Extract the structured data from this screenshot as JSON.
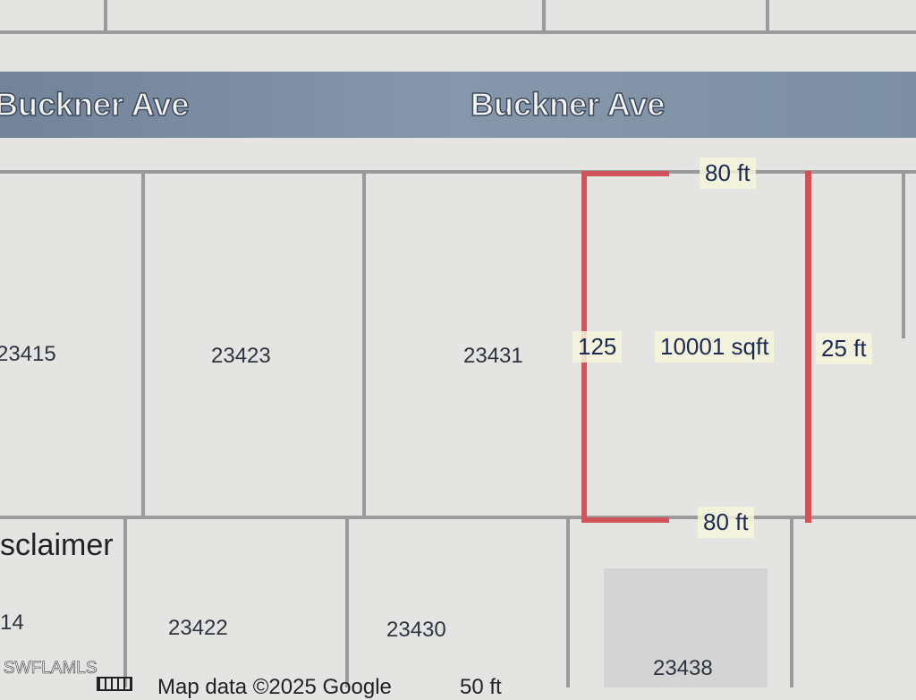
{
  "streets": [
    "Buckner Ave",
    "Buckner Ave"
  ],
  "parcels_row1": [
    "23415",
    "23423",
    "23431"
  ],
  "parcels_row2": [
    "14",
    "23422",
    "23430",
    "23438"
  ],
  "selected_parcel": {
    "top": "80 ft",
    "bottom": "80 ft",
    "left": "125",
    "right": "25 ft",
    "area": "10001 sqft"
  },
  "disclaimer": "sclaimer",
  "watermark": "SWFLAMLS",
  "footer": {
    "map_data": "Map data ©2025 Google",
    "scale": "50 ft"
  },
  "colors": {
    "street": "#7d8fa5",
    "boundary": "#cf5358"
  }
}
